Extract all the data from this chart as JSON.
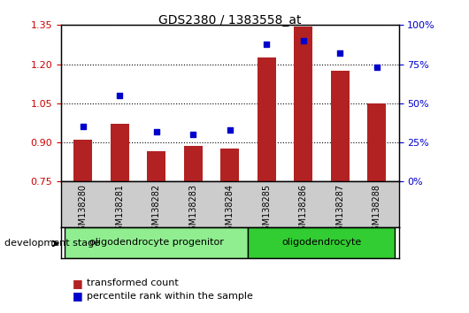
{
  "title": "GDS2380 / 1383558_at",
  "samples": [
    "GSM138280",
    "GSM138281",
    "GSM138282",
    "GSM138283",
    "GSM138284",
    "GSM138285",
    "GSM138286",
    "GSM138287",
    "GSM138288"
  ],
  "transformed_count": [
    0.91,
    0.97,
    0.865,
    0.885,
    0.875,
    1.225,
    1.345,
    1.175,
    1.05
  ],
  "percentile_rank": [
    35,
    55,
    32,
    30,
    33,
    88,
    90,
    82,
    73
  ],
  "ylim_left": [
    0.75,
    1.35
  ],
  "ylim_right": [
    0,
    100
  ],
  "yticks_left": [
    0.75,
    0.9,
    1.05,
    1.2,
    1.35
  ],
  "yticks_right": [
    0,
    25,
    50,
    75,
    100
  ],
  "bar_color": "#B22222",
  "dot_color": "#0000CC",
  "group1_label": "oligodendrocyte progenitor",
  "group2_label": "oligodendrocyte",
  "group1_indices": [
    0,
    1,
    2,
    3,
    4
  ],
  "group2_indices": [
    5,
    6,
    7,
    8
  ],
  "group1_color": "#90EE90",
  "group2_color": "#32CD32",
  "xlabel_left": "development stage",
  "legend_bar": "transformed count",
  "legend_dot": "percentile rank within the sample",
  "tick_label_color": "#CC0000",
  "right_tick_color": "#0000CC",
  "bar_width": 0.5
}
